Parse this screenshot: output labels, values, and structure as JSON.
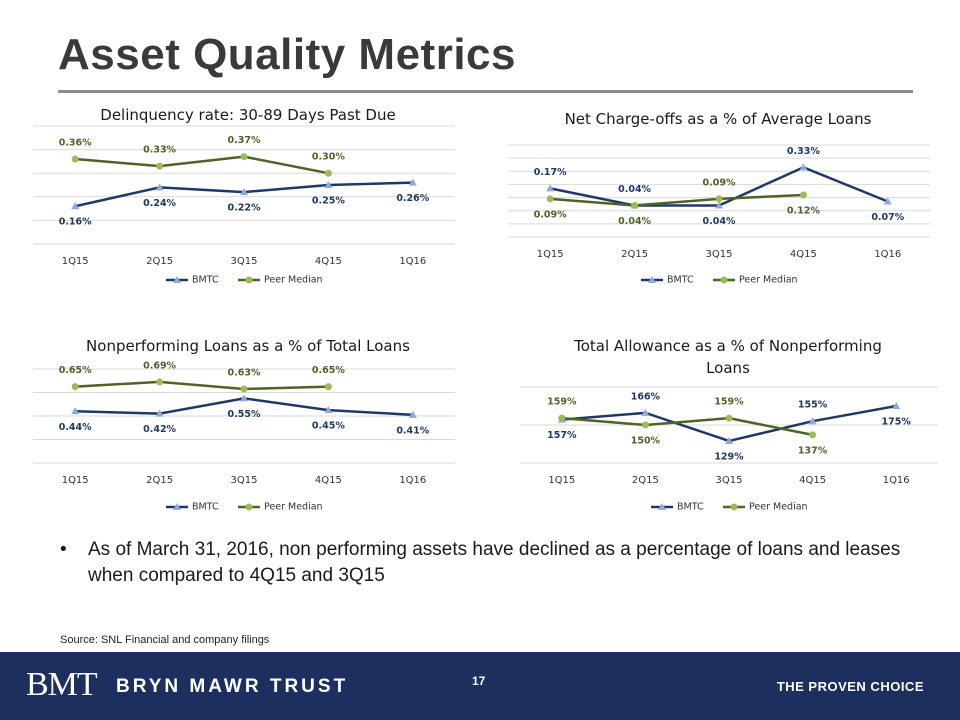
{
  "title": "Asset Quality Metrics",
  "bullet": "As of March 31, 2016, non performing assets have declined as a percentage of loans and leases when compared to 4Q15 and 3Q15",
  "source": "Source: SNL Financial and company filings",
  "footer": {
    "logo": "BMT",
    "brand": "BRYN MAWR TRUST",
    "page": "17",
    "tagline": "THE PROVEN CHOICE"
  },
  "chart_data": [
    {
      "type": "line",
      "title": "Delinquency rate: 30-89 Days Past Due",
      "categories": [
        "1Q15",
        "2Q15",
        "3Q15",
        "4Q15",
        "1Q16"
      ],
      "ylim": [
        0,
        0.5
      ],
      "yticks": [
        0,
        0.1,
        0.2,
        0.3,
        0.4,
        0.5
      ],
      "grid": true,
      "series": [
        {
          "name": "BMTC",
          "color": "#1f3864",
          "marker": "triangle",
          "marker_color": "#8eaadb",
          "values": [
            0.16,
            0.24,
            0.22,
            0.25,
            0.26
          ],
          "value_labels": [
            "0.16%",
            "0.24%",
            "0.22%",
            "0.25%",
            "0.26%"
          ]
        },
        {
          "name": "Peer Median",
          "color": "#4f6228",
          "marker": "circle",
          "marker_color": "#9bbb59",
          "values": [
            0.36,
            0.33,
            0.37,
            0.3,
            null
          ],
          "value_labels": [
            "0.36%",
            "0.33%",
            "0.37%",
            "0.30%",
            null
          ]
        }
      ]
    },
    {
      "type": "line",
      "title": "Net Charge-offs as a % of Average Loans",
      "categories": [
        "1Q15",
        "2Q15",
        "3Q15",
        "4Q15",
        "1Q16"
      ],
      "ylim": [
        -0.2,
        0.5
      ],
      "yticks": [
        -0.2,
        -0.1,
        0,
        0.1,
        0.2,
        0.3,
        0.4,
        0.5
      ],
      "grid": true,
      "series": [
        {
          "name": "BMTC",
          "color": "#1f3864",
          "marker": "triangle",
          "marker_color": "#8eaadb",
          "values": [
            0.17,
            0.04,
            0.04,
            0.33,
            0.07
          ],
          "value_labels": [
            "0.17%",
            "0.04%",
            "0.04%",
            "0.33%",
            "0.07%"
          ]
        },
        {
          "name": "Peer Median",
          "color": "#4f6228",
          "marker": "circle",
          "marker_color": "#9bbb59",
          "values": [
            0.09,
            0.04,
            0.09,
            0.12,
            null
          ],
          "value_labels": [
            "0.09%",
            "0.04%",
            "0.09%",
            "0.12%",
            null
          ]
        }
      ]
    },
    {
      "type": "line",
      "title": "Nonperforming Loans as a % of Total Loans",
      "categories": [
        "1Q15",
        "2Q15",
        "3Q15",
        "4Q15",
        "1Q16"
      ],
      "ylim": [
        0,
        0.8
      ],
      "yticks": [
        0,
        0.2,
        0.4,
        0.6,
        0.8
      ],
      "grid": true,
      "series": [
        {
          "name": "BMTC",
          "color": "#1f3864",
          "marker": "triangle",
          "marker_color": "#8eaadb",
          "values": [
            0.44,
            0.42,
            0.55,
            0.45,
            0.41
          ],
          "value_labels": [
            "0.44%",
            "0.42%",
            "0.55%",
            "0.45%",
            "0.41%"
          ]
        },
        {
          "name": "Peer Median",
          "color": "#4f6228",
          "marker": "circle",
          "marker_color": "#9bbb59",
          "values": [
            0.65,
            0.69,
            0.63,
            0.65,
            null
          ],
          "value_labels": [
            "0.65%",
            "0.69%",
            "0.63%",
            "0.65%",
            null
          ]
        }
      ]
    },
    {
      "type": "line",
      "title": "Total Allowance as a % of Nonperforming Loans",
      "categories": [
        "1Q15",
        "2Q15",
        "3Q15",
        "4Q15",
        "1Q16"
      ],
      "ylim": [
        100,
        200
      ],
      "yticks": [
        100,
        150,
        200
      ],
      "grid": true,
      "series": [
        {
          "name": "BMTC",
          "color": "#1f3864",
          "marker": "triangle",
          "marker_color": "#8eaadb",
          "values": [
            157,
            166,
            129,
            155,
            175
          ],
          "value_labels": [
            "157%",
            "166%",
            "129%",
            "155%",
            "175%"
          ]
        },
        {
          "name": "Peer Median",
          "color": "#4f6228",
          "marker": "circle",
          "marker_color": "#9bbb59",
          "values": [
            159,
            150,
            159,
            137,
            null
          ],
          "value_labels": [
            "159%",
            "150%",
            "159%",
            "137%",
            null
          ]
        }
      ]
    }
  ]
}
